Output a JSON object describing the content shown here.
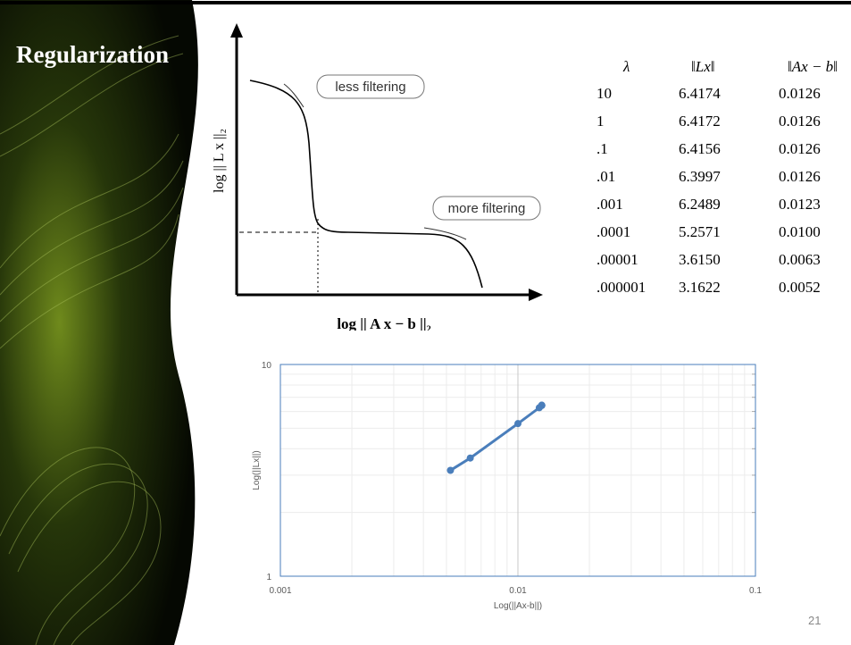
{
  "title": "Regularization",
  "diagram": {
    "y_label": "log || L x ||₂",
    "x_label": "log || A x − b ||₂",
    "annotations": [
      "less filtering",
      "more filtering"
    ]
  },
  "table": {
    "header": [
      "λ",
      "‖Lx‖",
      "‖Ax − b‖"
    ],
    "rows": [
      [
        "10",
        "6.4174",
        "0.0126"
      ],
      [
        "1",
        "6.4172",
        "0.0126"
      ],
      [
        ".1",
        "6.4156",
        "0.0126"
      ],
      [
        ".01",
        "6.3997",
        "0.0126"
      ],
      [
        ".001",
        "6.2489",
        "0.0123"
      ],
      [
        ".0001",
        "5.2571",
        "0.0100"
      ],
      [
        ".00001",
        "3.6150",
        "0.0063"
      ],
      [
        ".000001",
        "3.1622",
        "0.0052"
      ]
    ]
  },
  "chart_data": {
    "type": "line",
    "x_label": "Log(||Ax-b||)",
    "y_label": "Log(||Lx||)",
    "x": [
      0.0126,
      0.0126,
      0.0126,
      0.0126,
      0.0123,
      0.01,
      0.0063,
      0.0052
    ],
    "values": [
      6.4174,
      6.4172,
      6.4156,
      6.3997,
      6.2489,
      5.2571,
      3.615,
      3.1622
    ],
    "color": "#4a7ebb",
    "xlog": true,
    "ylog": true,
    "grid": true,
    "xlim": [
      0.001,
      0.1
    ],
    "xticks": [
      0.001,
      0.01,
      0.1
    ],
    "ylim": [
      1,
      10
    ],
    "yticks": [
      1,
      10
    ]
  },
  "page_number": "21"
}
